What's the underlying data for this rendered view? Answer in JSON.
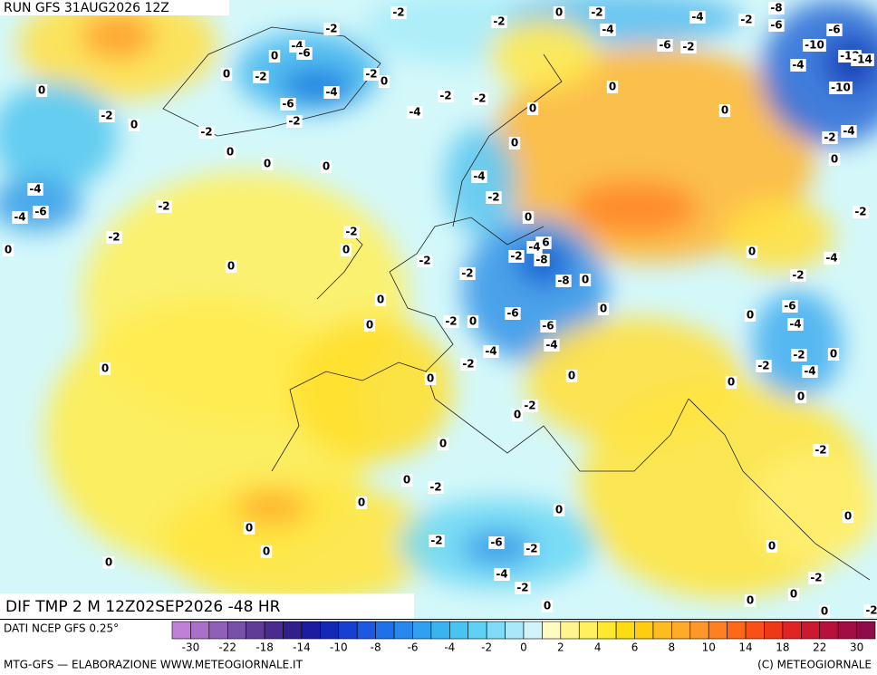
{
  "header": {
    "run": "RUN GFS 31AUG2026 12Z",
    "title": "DIF TMP 2 M 12Z02SEP2026 -48 HR"
  },
  "map_labels": [
    -2,
    -2,
    0,
    -2,
    -4,
    -2,
    -8,
    -6,
    -2,
    -4,
    -6,
    0,
    -6,
    -10,
    -12,
    -14,
    -4,
    -6,
    -2,
    -4,
    0,
    0,
    -2,
    -2,
    0,
    -4,
    -6,
    -2,
    -2,
    -2,
    -4,
    0,
    0,
    -10,
    -2,
    0,
    -2,
    0,
    0,
    0,
    0,
    0,
    -2,
    -4,
    0,
    -4,
    -4,
    -6,
    -2,
    -2,
    0,
    -4,
    -2,
    0,
    -2,
    0,
    -6,
    -4,
    -2,
    -8,
    -2,
    -2,
    0,
    0,
    -2,
    -4,
    -2,
    -8,
    0,
    0,
    0,
    0,
    -6,
    -6,
    -2,
    0,
    -4,
    -4,
    -2,
    0,
    0,
    0,
    -6,
    -4,
    0,
    -2,
    0,
    -4,
    -2,
    0,
    -2,
    0,
    0,
    -2,
    0,
    -2,
    0,
    0,
    0,
    0,
    0,
    0,
    -2,
    -6,
    -2,
    0,
    0,
    -4,
    -2,
    -2,
    0,
    0,
    0,
    0,
    -2
  ],
  "colorbar": {
    "source": "DATI NCEP GFS 0.25°",
    "colors": [
      "#c080d8",
      "#a870c8",
      "#9060b8",
      "#7850a8",
      "#603c98",
      "#4a2c90",
      "#30208c",
      "#1c1ca0",
      "#1428b8",
      "#1840d0",
      "#1c58e0",
      "#2070e8",
      "#2888ee",
      "#30a0f0",
      "#38b4f0",
      "#48c4f0",
      "#60d0f4",
      "#80dcf6",
      "#a8e8f8",
      "#d0f4fa",
      "#fffac0",
      "#fff490",
      "#fff060",
      "#ffe830",
      "#ffdc10",
      "#ffcc10",
      "#ffbc20",
      "#ffaa28",
      "#ff9828",
      "#ff8020",
      "#ff6818",
      "#f85018",
      "#ee3818",
      "#e02424",
      "#cc1830",
      "#b8103c",
      "#a40c44",
      "#900c48"
    ],
    "labels": [
      -30,
      -22,
      -18,
      -14,
      -10,
      -8,
      -6,
      -4,
      -2,
      0,
      2,
      4,
      6,
      8,
      10,
      14,
      18,
      22,
      30
    ]
  },
  "footer": {
    "left": "MTG-GFS — ELABORAZIONE WWW.METEOGIORNALE.IT",
    "right": "(C) METEOGIORNALE"
  }
}
